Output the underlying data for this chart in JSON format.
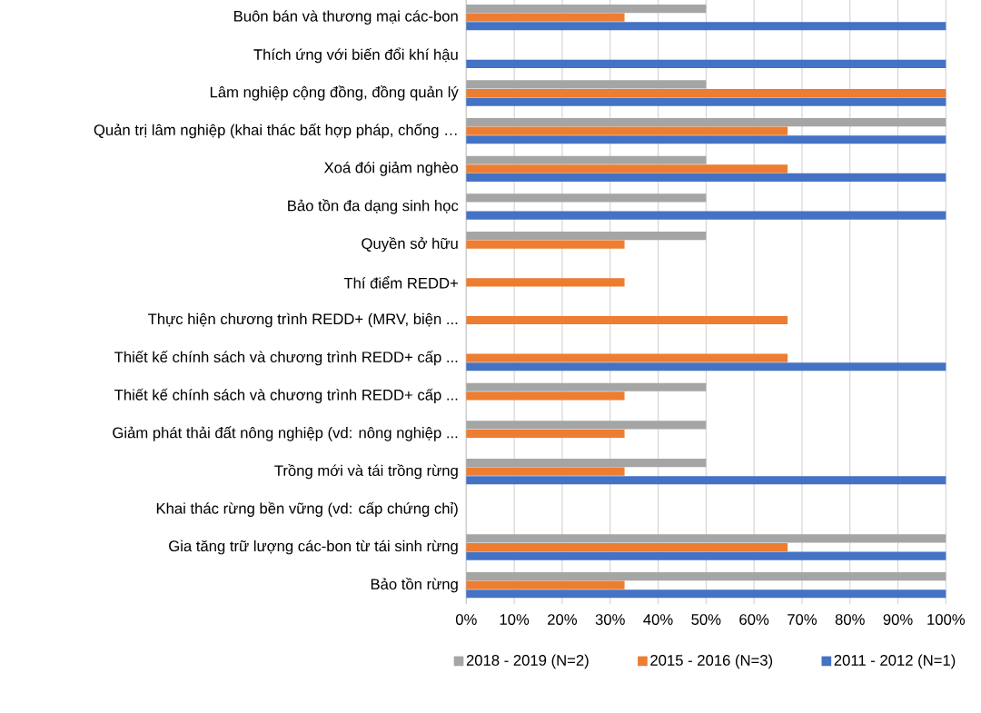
{
  "chart_data": {
    "type": "bar",
    "orientation": "horizontal",
    "categories": [
      "Buôn bán và thương mại các-bon",
      "Thích ứng với biến đổi khí hậu",
      "Lâm nghiệp cộng đồng, đồng quản lý",
      "Quản trị lâm nghiệp (khai thác bất hợp pháp, chống …",
      "Xoá đói giảm nghèo",
      "Bảo tồn đa dạng sinh học",
      "Quyền sở hữu",
      "Thí điểm REDD+",
      "Thực hiện chương trình REDD+ (MRV, biện ...",
      "Thiết kế chính sách và chương trình REDD+ cấp ...",
      "Thiết kế chính sách và chương trình REDD+ cấp ...",
      "Giảm phát thải đất nông nghiệp (vd: nông nghiệp ...",
      "Trồng mới và tái trồng rừng",
      "Khai thác rừng bền vững (vd: cấp chứng chỉ)",
      "Gia tăng trữ lượng các-bon từ tái sinh rừng",
      "Bảo tồn rừng"
    ],
    "series": [
      {
        "name": "2018 - 2019 (N=2)",
        "color": "#a5a5a5",
        "values": [
          50,
          null,
          50,
          100,
          50,
          50,
          50,
          null,
          null,
          null,
          50,
          50,
          50,
          null,
          100,
          100
        ]
      },
      {
        "name": "2015 - 2016 (N=3)",
        "color": "#ed7d31",
        "values": [
          33,
          null,
          100,
          67,
          67,
          null,
          33,
          33,
          67,
          67,
          33,
          33,
          33,
          null,
          67,
          33
        ]
      },
      {
        "name": "2011 - 2012 (N=1)",
        "color": "#4472c4",
        "values": [
          100,
          100,
          100,
          100,
          100,
          100,
          null,
          null,
          null,
          100,
          null,
          null,
          100,
          null,
          100,
          100
        ]
      }
    ],
    "xlim": [
      0,
      100
    ],
    "xticks": [
      {
        "value": 0,
        "label": "0%"
      },
      {
        "value": 10,
        "label": "10%"
      },
      {
        "value": 20,
        "label": "20%"
      },
      {
        "value": 30,
        "label": "30%"
      },
      {
        "value": 40,
        "label": "40%"
      },
      {
        "value": 50,
        "label": "50%"
      },
      {
        "value": 60,
        "label": "60%"
      },
      {
        "value": 70,
        "label": "70%"
      },
      {
        "value": 80,
        "label": "80%"
      },
      {
        "value": 90,
        "label": "90%"
      },
      {
        "value": 100,
        "label": "100%"
      }
    ],
    "grid": "x",
    "legend": "bottom"
  }
}
